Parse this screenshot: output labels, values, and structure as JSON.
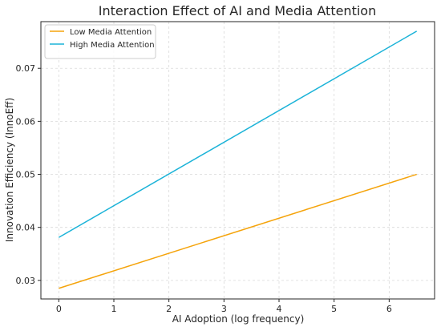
{
  "chart_data": {
    "type": "line",
    "title": "Interaction Effect of AI and Media Attention",
    "xlabel": "AI Adoption (log frequency)",
    "ylabel": "Innovation Efficiency (InnoEff)",
    "xlim": [
      -0.325,
      6.825
    ],
    "ylim": [
      0.0265,
      0.0788
    ],
    "xticks": [
      0,
      1,
      2,
      3,
      4,
      5,
      6
    ],
    "yticks": [
      0.03,
      0.04,
      0.05,
      0.06,
      0.07
    ],
    "xtick_labels": [
      "0",
      "1",
      "2",
      "3",
      "4",
      "5",
      "6"
    ],
    "ytick_labels": [
      "0.03",
      "0.04",
      "0.05",
      "0.06",
      "0.07"
    ],
    "grid": true,
    "legend_position": "top-left",
    "series": [
      {
        "name": "Low Media Attention",
        "color": "#f5a40c",
        "x": [
          0,
          6.5
        ],
        "y": [
          0.0285,
          0.05
        ]
      },
      {
        "name": "High Media Attention",
        "color": "#1bb3d8",
        "x": [
          0,
          6.5
        ],
        "y": [
          0.0381,
          0.077
        ]
      }
    ]
  }
}
